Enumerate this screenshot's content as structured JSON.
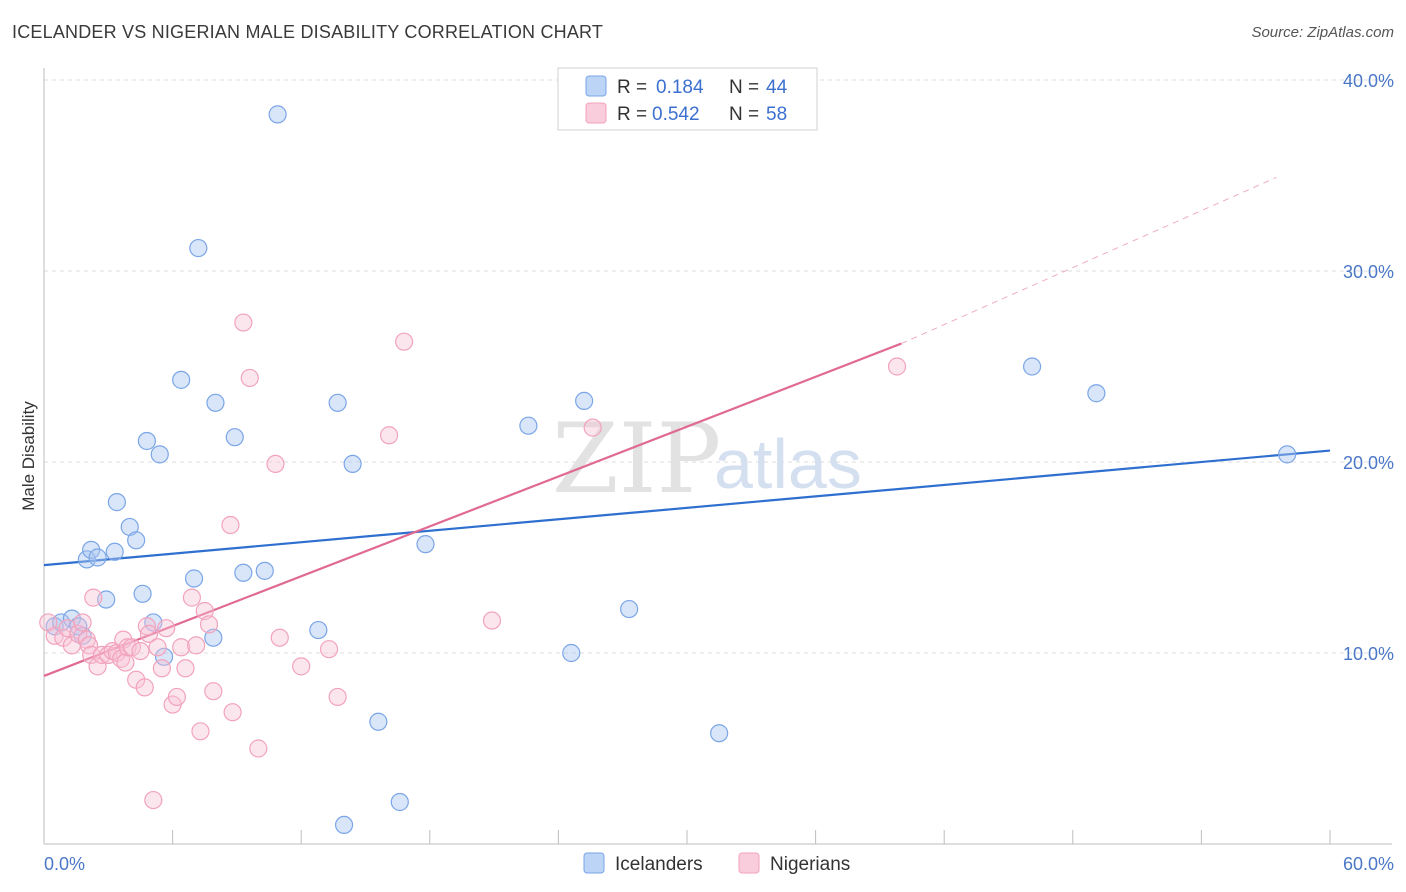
{
  "header": {
    "title": "ICELANDER VS NIGERIAN MALE DISABILITY CORRELATION CHART",
    "source": "Source: ZipAtlas.com"
  },
  "watermark": {
    "zip": "ZIP",
    "atlas": "atlas"
  },
  "legend_top": {
    "r_label": "R =",
    "n_label": "N =",
    "rows": [
      {
        "r": "0.184",
        "n": "44"
      },
      {
        "r": "0.542",
        "n": "58"
      }
    ]
  },
  "chart_data": {
    "type": "scatter",
    "title": "ICELANDER VS NIGERIAN MALE DISABILITY CORRELATION CHART",
    "xlabel": "",
    "ylabel": "Male Disability",
    "xlim": [
      0,
      60
    ],
    "ylim": [
      0,
      40
    ],
    "x_tick_labels": [
      {
        "value": 0,
        "label": "0.0%"
      },
      {
        "value": 60,
        "label": "60.0%"
      }
    ],
    "y_tick_labels": [
      {
        "value": 10,
        "label": "10.0%"
      },
      {
        "value": 20,
        "label": "20.0%"
      },
      {
        "value": 30,
        "label": "30.0%"
      },
      {
        "value": 40,
        "label": "40.0%"
      }
    ],
    "grid": true,
    "legend_position": "bottom",
    "series": [
      {
        "name": "Icelanders",
        "color": "#7aa6e8",
        "trend_color": "#2f6fcf",
        "trend": {
          "x0": 0,
          "y0": 14.6,
          "x1": 60,
          "y1": 20.6
        },
        "points": [
          [
            0.5,
            11.4
          ],
          [
            0.8,
            11.6
          ],
          [
            1.3,
            11.8
          ],
          [
            1.6,
            11.4
          ],
          [
            1.8,
            10.9
          ],
          [
            2.0,
            14.9
          ],
          [
            2.2,
            15.4
          ],
          [
            2.5,
            15.0
          ],
          [
            2.9,
            12.8
          ],
          [
            3.3,
            15.3
          ],
          [
            3.4,
            17.9
          ],
          [
            4.0,
            16.6
          ],
          [
            4.3,
            15.9
          ],
          [
            4.6,
            13.1
          ],
          [
            4.8,
            21.1
          ],
          [
            5.1,
            11.6
          ],
          [
            5.4,
            20.4
          ],
          [
            5.6,
            9.8
          ],
          [
            6.4,
            24.3
          ],
          [
            7.0,
            13.9
          ],
          [
            7.2,
            31.2
          ],
          [
            7.9,
            10.8
          ],
          [
            8.0,
            23.1
          ],
          [
            8.9,
            21.3
          ],
          [
            9.3,
            14.2
          ],
          [
            10.3,
            14.3
          ],
          [
            10.9,
            38.2
          ],
          [
            12.8,
            11.2
          ],
          [
            13.7,
            23.1
          ],
          [
            14.0,
            1.0
          ],
          [
            14.4,
            19.9
          ],
          [
            15.6,
            6.4
          ],
          [
            16.6,
            2.2
          ],
          [
            17.8,
            15.7
          ],
          [
            22.6,
            21.9
          ],
          [
            24.6,
            10.0
          ],
          [
            25.2,
            23.2
          ],
          [
            27.3,
            12.3
          ],
          [
            31.5,
            5.8
          ],
          [
            46.1,
            25.0
          ],
          [
            49.1,
            23.6
          ],
          [
            58.0,
            20.4
          ]
        ]
      },
      {
        "name": "Nigerians",
        "color": "#f2a3bc",
        "trend_color": "#e06a93",
        "trend": {
          "x0": 0,
          "y0": 8.8,
          "x1": 40,
          "y1": 26.2
        },
        "trend_extended": {
          "x0": 40,
          "y0": 26.2,
          "x1": 57.5,
          "y1": 34.9
        },
        "points": [
          [
            0.2,
            11.6
          ],
          [
            0.5,
            10.9
          ],
          [
            0.9,
            10.8
          ],
          [
            1.1,
            11.3
          ],
          [
            1.3,
            10.4
          ],
          [
            1.6,
            11.0
          ],
          [
            1.8,
            11.6
          ],
          [
            2.0,
            10.7
          ],
          [
            2.1,
            10.4
          ],
          [
            2.2,
            9.9
          ],
          [
            2.3,
            12.9
          ],
          [
            2.5,
            9.3
          ],
          [
            2.7,
            9.9
          ],
          [
            3.0,
            9.9
          ],
          [
            3.2,
            10.1
          ],
          [
            3.4,
            10.0
          ],
          [
            3.6,
            9.7
          ],
          [
            3.7,
            10.7
          ],
          [
            3.8,
            9.5
          ],
          [
            3.9,
            10.3
          ],
          [
            4.1,
            10.3
          ],
          [
            4.3,
            8.6
          ],
          [
            4.5,
            10.1
          ],
          [
            4.7,
            8.2
          ],
          [
            4.8,
            11.4
          ],
          [
            4.9,
            11.0
          ],
          [
            5.1,
            2.3
          ],
          [
            5.3,
            10.3
          ],
          [
            5.5,
            9.2
          ],
          [
            5.7,
            11.3
          ],
          [
            6.0,
            7.3
          ],
          [
            6.2,
            7.7
          ],
          [
            6.4,
            10.3
          ],
          [
            6.6,
            9.2
          ],
          [
            6.9,
            12.9
          ],
          [
            7.1,
            10.4
          ],
          [
            7.3,
            5.9
          ],
          [
            7.5,
            12.2
          ],
          [
            7.7,
            11.5
          ],
          [
            7.9,
            8.0
          ],
          [
            8.7,
            16.7
          ],
          [
            9.3,
            27.3
          ],
          [
            9.6,
            24.4
          ],
          [
            8.8,
            6.9
          ],
          [
            10.0,
            5.0
          ],
          [
            10.8,
            19.9
          ],
          [
            11.0,
            10.8
          ],
          [
            12.0,
            9.3
          ],
          [
            13.3,
            10.2
          ],
          [
            13.7,
            7.7
          ],
          [
            16.1,
            21.4
          ],
          [
            16.8,
            26.3
          ],
          [
            20.9,
            11.7
          ],
          [
            25.6,
            21.8
          ],
          [
            39.8,
            25.0
          ]
        ]
      }
    ]
  }
}
